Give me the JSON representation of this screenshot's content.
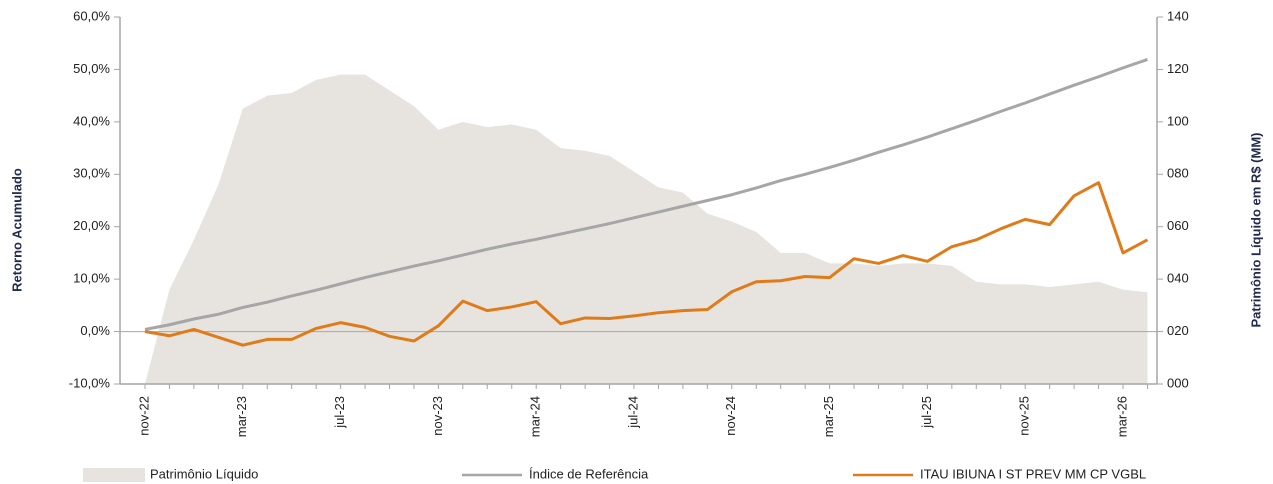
{
  "chart_data": {
    "type": "line",
    "y_label": "Retorno Acumulado",
    "y2_label": "Patrimônio Líquido em R$ (MM)",
    "categories": [
      "nov-22",
      null,
      null,
      null,
      "mar-23",
      null,
      null,
      null,
      "jul-23",
      null,
      null,
      null,
      "nov-23",
      null,
      null,
      null,
      "mar-24",
      null,
      null,
      null,
      "jul-24",
      null,
      null,
      null,
      "nov-24",
      null,
      null,
      null,
      "mar-25",
      null,
      null,
      null,
      "jul-25",
      null,
      null,
      null,
      "nov-25",
      null,
      null,
      null,
      "mar-26",
      null
    ],
    "ylim": [
      -10,
      60
    ],
    "yticks": [
      {
        "value": -10,
        "label": "-10,0%"
      },
      {
        "value": 0,
        "label": "0,0%"
      },
      {
        "value": 10,
        "label": "10,0%"
      },
      {
        "value": 20,
        "label": "20,0%"
      },
      {
        "value": 30,
        "label": "30,0%"
      },
      {
        "value": 40,
        "label": "40,0%"
      },
      {
        "value": 50,
        "label": "50,0%"
      },
      {
        "value": 60,
        "label": "60,0%"
      }
    ],
    "y2lim": [
      0,
      140
    ],
    "y2ticks": [
      {
        "value": 0,
        "label": "000"
      },
      {
        "value": 20,
        "label": "020"
      },
      {
        "value": 40,
        "label": "040"
      },
      {
        "value": 60,
        "label": "060"
      },
      {
        "value": 80,
        "label": "080"
      },
      100,
      120,
      140
    ],
    "series": [
      {
        "name": "Patrimônio Líquido",
        "type": "area",
        "axis": "y2",
        "color": "#e7e3de",
        "values": [
          0,
          36,
          55,
          76,
          105,
          110,
          111,
          116,
          118,
          118,
          112,
          106,
          97,
          100,
          98,
          99,
          97,
          90,
          89,
          87,
          81,
          75,
          73,
          65,
          62,
          58,
          50,
          50,
          46,
          46,
          45,
          46,
          46,
          45,
          39,
          38,
          38,
          37,
          38,
          39,
          36,
          35
        ]
      },
      {
        "name": "Índice de Referência",
        "type": "line",
        "color": "#a6a6a6",
        "values": [
          0.4,
          1.3,
          2.4,
          3.3,
          4.6,
          5.6,
          6.8,
          7.9,
          9.1,
          10.3,
          11.4,
          12.5,
          13.5,
          14.6,
          15.7,
          16.7,
          17.6,
          18.6,
          19.6,
          20.6,
          21.7,
          22.8,
          23.9,
          25.0,
          26.1,
          27.4,
          28.8,
          30.0,
          31.3,
          32.7,
          34.2,
          35.6,
          37.1,
          38.7,
          40.3,
          42.0,
          43.6,
          45.3,
          47.0,
          48.6,
          50.3,
          51.9
        ]
      },
      {
        "name": "ITAU IBIUNA I ST PREV MM CP VGBL",
        "type": "line",
        "color": "#e07b1a",
        "values": [
          0,
          -0.8,
          0.4,
          -1.1,
          -2.6,
          -1.5,
          -1.5,
          0.6,
          1.7,
          0.8,
          -0.9,
          -1.8,
          1.1,
          5.8,
          4.0,
          4.7,
          5.7,
          1.5,
          2.6,
          2.5,
          3.0,
          3.6,
          4.0,
          4.2,
          7.6,
          9.5,
          9.7,
          10.5,
          10.3,
          13.9,
          13.0,
          14.5,
          13.4,
          16.2,
          17.5,
          19.6,
          21.4,
          20.4,
          25.9,
          28.4,
          15.0,
          17.5
        ]
      }
    ]
  }
}
